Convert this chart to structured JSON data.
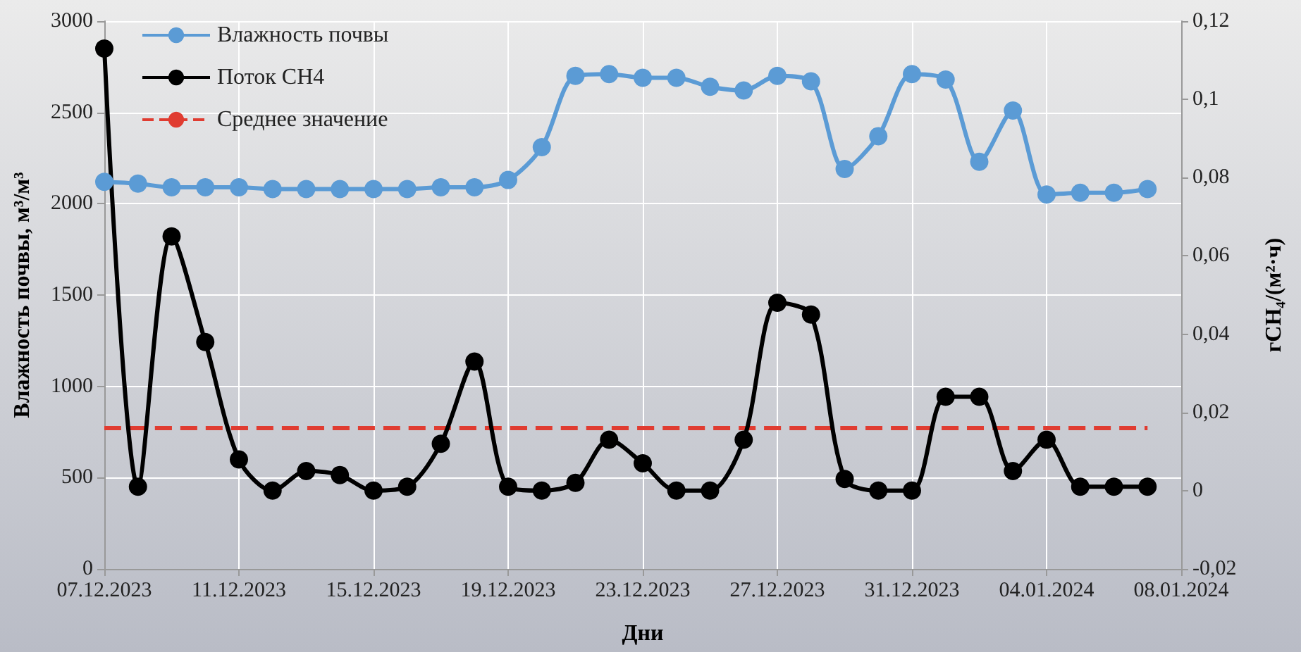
{
  "chart_data": {
    "type": "line",
    "x": [
      "2023-12-07",
      "2023-12-08",
      "2023-12-09",
      "2023-12-10",
      "2023-12-11",
      "2023-12-12",
      "2023-12-13",
      "2023-12-14",
      "2023-12-15",
      "2023-12-16",
      "2023-12-17",
      "2023-12-18",
      "2023-12-19",
      "2023-12-20",
      "2023-12-21",
      "2023-12-22",
      "2023-12-23",
      "2023-12-24",
      "2023-12-25",
      "2023-12-26",
      "2023-12-27",
      "2023-12-28",
      "2023-12-29",
      "2023-12-30",
      "2023-12-31",
      "2024-01-01",
      "2024-01-02",
      "2024-01-03",
      "2024-01-04",
      "2024-01-05",
      "2024-01-06",
      "2024-01-07"
    ],
    "series": [
      {
        "name": "Влажность почвы",
        "color": "#5b9bd5",
        "marker": "circle",
        "line_style": "solid",
        "values": [
          2120,
          2110,
          2090,
          2090,
          2090,
          2080,
          2080,
          2080,
          2080,
          2080,
          2090,
          2090,
          2130,
          2310,
          2700,
          2710,
          2690,
          2690,
          2640,
          2620,
          2700,
          2670,
          2190,
          2370,
          2710,
          2680,
          2230,
          2510,
          2050,
          2060,
          2060,
          2080
        ]
      },
      {
        "name": "Поток CH4",
        "color": "#000000",
        "marker": "circle",
        "line_style": "solid",
        "axis": "y2",
        "values": [
          0.113,
          0.001,
          0.065,
          0.038,
          0.008,
          0,
          0.005,
          0.004,
          0,
          0.001,
          0.012,
          0.033,
          0.001,
          0,
          0.002,
          0.013,
          0.007,
          0,
          0,
          0.013,
          0.048,
          0.045,
          0.003,
          0,
          0,
          0.024,
          0.024,
          0.005,
          0.013,
          0.001,
          0.001,
          0.001
        ]
      },
      {
        "name": "Среднее значение",
        "color": "#e03c31",
        "marker": "none",
        "line_style": "dashed",
        "axis": "y2",
        "x": [
          "2023-12-07",
          "2024-01-07"
        ],
        "values": [
          0.016,
          0.016
        ]
      }
    ],
    "xlabel": "Дни",
    "ylabel": "Влажность почвы, м³/м³",
    "y2label": "гCH₄/(м²·ч)",
    "xlim": [
      "2023-12-07",
      "2024-01-08"
    ],
    "xticks": [
      {
        "value": "2023-12-07",
        "label": "07.12.2023"
      },
      {
        "value": "2023-12-11",
        "label": "11.12.2023"
      },
      {
        "value": "2023-12-15",
        "label": "15.12.2023"
      },
      {
        "value": "2023-12-19",
        "label": "19.12.2023"
      },
      {
        "value": "2023-12-23",
        "label": "23.12.2023"
      },
      {
        "value": "2023-12-27",
        "label": "27.12.2023"
      },
      {
        "value": "2023-12-31",
        "label": "31.12.2023"
      },
      {
        "value": "2024-01-04",
        "label": "04.01.2024"
      },
      {
        "value": "2024-01-08",
        "label": "08.01.2024"
      }
    ],
    "ylim": [
      0,
      3000
    ],
    "yticks": [
      0,
      500,
      1000,
      1500,
      2000,
      2500,
      3000
    ],
    "y2lim": [
      -0.02,
      0.12
    ],
    "y2ticks": [
      {
        "value": -0.02,
        "label": "-0,02"
      },
      0,
      {
        "value": 0.02,
        "label": "0,02"
      },
      {
        "value": 0.04,
        "label": "0,04"
      },
      {
        "value": 0.06,
        "label": "0,06"
      },
      {
        "value": 0.08,
        "label": "0,08"
      },
      {
        "value": 0.1,
        "label": "0,1"
      },
      {
        "value": 0.12,
        "label": "0,12"
      }
    ],
    "grid": true,
    "legend": "top left"
  }
}
